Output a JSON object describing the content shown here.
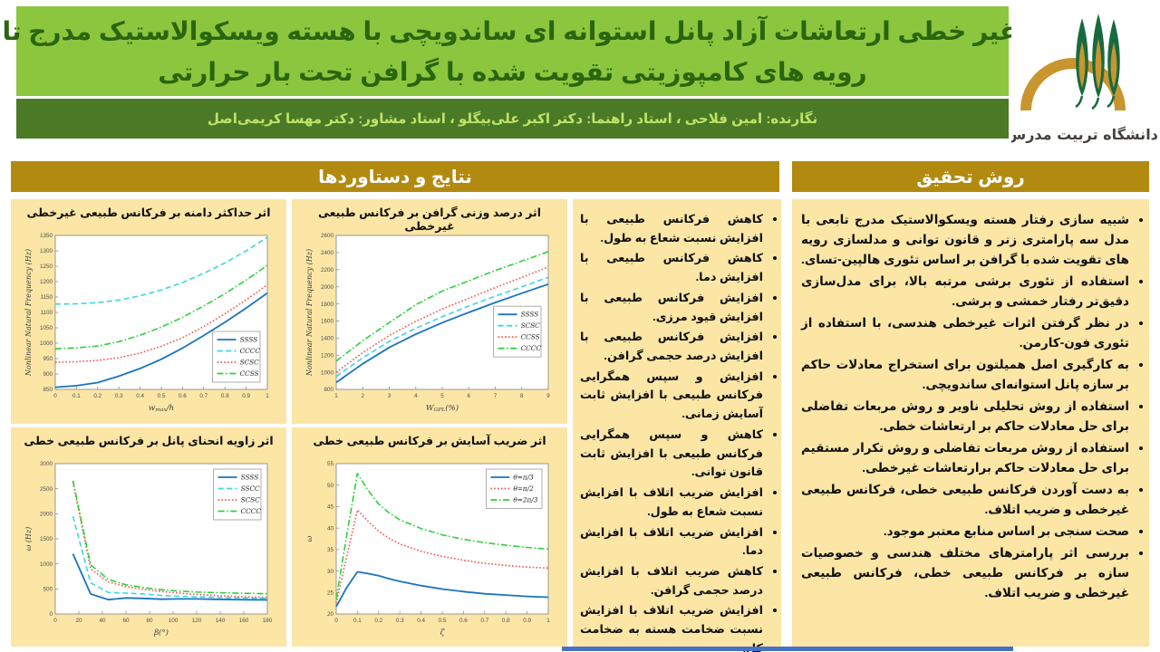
{
  "title": {
    "line1": "تحلیل غیر خطی ارتعاشات آزاد پانل استوانه ای ساندویچی با هسته ویسکوالاستیک مدرج تابعی و",
    "line2": "رویه های کامپوزیتی تقویت شده با گرافن تحت بار حرارتی"
  },
  "authors": "نگارنده: امین فلاحی   ،   استاد راهنما: دکتر اکبر علی‌بیگلو   ،   استاد مشاور: دکتر مهسا کریمی‌اصل",
  "logo": {
    "caption": "دانشگاه تربیت مدرس"
  },
  "sections": {
    "results": {
      "header": "نتایج و دستاوردها",
      "bullets": [
        "کاهش فرکانس طبیعی با افزایش نسبت شعاع به طول.",
        "کاهش فرکانس طبیعی با افزایش دما.",
        "افزایش فرکانس طبیعی با افزایش قیود مرزی.",
        "افزایش فرکانس طبیعی با افزایش درصد حجمی گرافن.",
        "افزایش و سپس همگرایی فرکانس طبیعی با افزایش ثابت آسایش زمانی.",
        "کاهش و سپس همگرایی فرکانس طبیعی با افزایش ثابت قانون توانی.",
        "افزایش ضریب اتلاف با افزایش نسبت شعاع به طول.",
        "افزایش ضریب اتلاف با افزایش دما.",
        "کاهش ضریب اتلاف با افزایش درصد حجمی گرافن.",
        "افزایش ضریب اتلاف با افزایش نسبت ضخامت هسته به ضخامت کل."
      ]
    },
    "method": {
      "header": "روش تحقیق",
      "bullets": [
        "شبیه سازی رفتار هسته ویسکوالاستیک مدرج تابعی با مدل سه پارامتری زنر و قانون توانی و مدلسازی رویه های تقویت شده با گرافن بر اساس تئوری هالپین-تسای.",
        "استفاده از تئوری برشی مرتبه بالا، برای مدل‌سازی دقیق‌تر رفتار خمشی و برشی.",
        "در نظر گرفتن اثرات غیرخطی هندسی، با استفاده از تئوری فون-کارمن.",
        "به کارگیری اصل همیلتون برای استخراج معادلات حاکم بر سازه پانل استوانه‌ای ساندویچی.",
        "استفاده از روش تحلیلی ناویر و روش مربعات تفاضلی برای حل معادلات حاکم بر ارتعاشات خطی.",
        "استفاده از روش مربعات تفاضلی و روش تکرار مستقیم برای حل معادلات حاکم برارتعاشات غیرخطی.",
        "به دست آوردن فرکانس طبیعی خطی، فرکانس طبیعی غیرخطی و ضریب اتلاف.",
        "صحت سنجی بر اساس منابع معتبر موجود.",
        "بررسی اثر پارامترهای مختلف هندسی و خصوصیات سازه بر فرکانس طبیعی خطی، فرکانس طبیعی غیرخطی و ضریب اتلاف."
      ]
    }
  },
  "colors": {
    "title_band_bg": "#8cc63e",
    "title_text": "#2a650f",
    "author_bar_bg": "#4b7a27",
    "author_text": "#bfe468",
    "section_header_bg": "#b28a10",
    "panel_bg": "#fbe6a6",
    "bottom_accent": "#4472c4",
    "logo_gold": "#c8952e",
    "logo_green": "#176a40",
    "line_blue": "#1a73c2",
    "line_cyan": "#3cd6e6",
    "line_red": "#f0564e",
    "line_green": "#2ed13a"
  },
  "chart_data": [
    {
      "type": "line",
      "title": "اثر حداکثر دامنه بر فرکانس طبیعی غیرخطی",
      "xlabel": "w_{max}/h",
      "ylabel": "Nonlinear Natural Frequency (Hz)",
      "xlim": [
        0,
        1
      ],
      "ylim": [
        850,
        1350
      ],
      "xticks": [
        0,
        0.1,
        0.2,
        0.3,
        0.4,
        0.5,
        0.6,
        0.7,
        0.8,
        0.9,
        1
      ],
      "yticks": [
        850,
        900,
        950,
        1000,
        1050,
        1100,
        1150,
        1200,
        1250,
        1300,
        1350
      ],
      "legend": "br",
      "x": [
        0,
        0.1,
        0.2,
        0.3,
        0.4,
        0.5,
        0.6,
        0.7,
        0.8,
        0.9,
        1
      ],
      "series": [
        {
          "name": "SSSS",
          "color": "#1a73c2",
          "dash": "solid",
          "y": [
            857,
            862,
            872,
            893,
            918,
            948,
            984,
            1025,
            1068,
            1114,
            1163
          ]
        },
        {
          "name": "CCCC",
          "color": "#3cd6e6",
          "dash": "dashed",
          "y": [
            1127,
            1128,
            1132,
            1140,
            1154,
            1173,
            1197,
            1227,
            1261,
            1300,
            1344
          ]
        },
        {
          "name": "SCSC",
          "color": "#f0564e",
          "dash": "dotted",
          "y": [
            938,
            940,
            944,
            953,
            968,
            990,
            1018,
            1054,
            1096,
            1141,
            1190
          ]
        },
        {
          "name": "CCSS",
          "color": "#2ed13a",
          "dash": "dashdot",
          "y": [
            982,
            985,
            991,
            1005,
            1026,
            1052,
            1084,
            1121,
            1161,
            1205,
            1253
          ]
        }
      ]
    },
    {
      "type": "line",
      "title": "اثر درصد وزنی گرافن بر فرکانس طبیعی غیرخطی",
      "xlabel": "W_{GPL}(%)",
      "ylabel": "Nonlinear Natural Frequency (Hz)",
      "xlim": [
        1,
        9
      ],
      "ylim": [
        800,
        2600
      ],
      "xticks": [
        1,
        2,
        3,
        4,
        5,
        6,
        7,
        8,
        9
      ],
      "yticks": [
        800,
        1000,
        1200,
        1400,
        1600,
        1800,
        2000,
        2200,
        2400,
        2600
      ],
      "legend": "mr",
      "x": [
        1,
        2,
        3,
        4,
        5,
        6,
        7,
        8,
        9
      ],
      "series": [
        {
          "name": "SSSS",
          "color": "#1a73c2",
          "dash": "solid",
          "y": [
            880,
            1100,
            1290,
            1445,
            1580,
            1700,
            1815,
            1925,
            2030
          ]
        },
        {
          "name": "SCSC",
          "color": "#3cd6e6",
          "dash": "dashed",
          "y": [
            950,
            1170,
            1360,
            1515,
            1650,
            1775,
            1890,
            2000,
            2110
          ]
        },
        {
          "name": "CCSS",
          "color": "#f0564e",
          "dash": "dotted",
          "y": [
            1000,
            1230,
            1430,
            1595,
            1740,
            1865,
            1990,
            2110,
            2230
          ]
        },
        {
          "name": "CCCC",
          "color": "#2ed13a",
          "dash": "dashdot",
          "y": [
            1130,
            1370,
            1580,
            1790,
            1950,
            2070,
            2190,
            2300,
            2410
          ]
        }
      ]
    },
    {
      "type": "line",
      "title": "اثر زاویه انحنای پانل بر فرکانس طبیعی خطی",
      "xlabel": "β(°)",
      "ylabel": "ω (Hz)",
      "xlim": [
        0,
        180
      ],
      "ylim": [
        0,
        3000
      ],
      "xticks": [
        0,
        20,
        40,
        60,
        80,
        100,
        120,
        140,
        160,
        180
      ],
      "yticks": [
        0,
        500,
        1000,
        1500,
        2000,
        2500,
        3000
      ],
      "legend": "tr",
      "x": [
        15,
        30,
        45,
        60,
        75,
        90,
        105,
        120,
        135,
        150,
        165,
        180
      ],
      "series": [
        {
          "name": "SSSS",
          "color": "#1a73c2",
          "dash": "solid",
          "y": [
            1200,
            400,
            285,
            320,
            310,
            295,
            300,
            300,
            292,
            288,
            284,
            280
          ]
        },
        {
          "name": "SSCC",
          "color": "#3cd6e6",
          "dash": "dashed",
          "y": [
            1950,
            620,
            430,
            415,
            400,
            370,
            355,
            342,
            332,
            324,
            317,
            310
          ]
        },
        {
          "name": "SCSC",
          "color": "#f0564e",
          "dash": "dotted",
          "y": [
            2630,
            900,
            640,
            545,
            492,
            448,
            415,
            388,
            368,
            352,
            340,
            330
          ]
        },
        {
          "name": "CCCC",
          "color": "#2ed13a",
          "dash": "dashdot",
          "y": [
            2660,
            980,
            690,
            582,
            528,
            485,
            458,
            438,
            426,
            417,
            411,
            405
          ]
        }
      ]
    },
    {
      "type": "line",
      "title": "اثر ضریب آسایش بر فرکانس طبیعی خطی",
      "xlabel": "ζ",
      "ylabel": "ω",
      "xlim": [
        0,
        1
      ],
      "ylim": [
        20,
        55
      ],
      "xticks": [
        0,
        0.1,
        0.2,
        0.3,
        0.4,
        0.5,
        0.6,
        0.7,
        0.8,
        0.9,
        1
      ],
      "yticks": [
        20,
        25,
        30,
        35,
        40,
        45,
        50,
        55
      ],
      "legend": "tr",
      "x": [
        0,
        0.05,
        0.1,
        0.15,
        0.2,
        0.25,
        0.3,
        0.4,
        0.5,
        0.6,
        0.7,
        0.8,
        0.9,
        1
      ],
      "series": [
        {
          "name": "θ=π/3",
          "color": "#1a73c2",
          "dash": "solid",
          "y": [
            21.7,
            26.2,
            29.8,
            29.4,
            28.9,
            28.2,
            27.6,
            26.6,
            25.8,
            25.2,
            24.7,
            24.4,
            24.1,
            23.9
          ]
        },
        {
          "name": "θ=π/2",
          "color": "#f0564e",
          "dash": "dotted",
          "y": [
            22.5,
            33.5,
            44.2,
            41.6,
            39.3,
            37.6,
            36.3,
            34.6,
            33.4,
            32.5,
            31.8,
            31.3,
            30.9,
            30.7
          ]
        },
        {
          "name": "θ=2π/3",
          "color": "#2ed13a",
          "dash": "dashdot",
          "y": [
            23.5,
            38.5,
            52.7,
            48.8,
            45.6,
            43.5,
            41.9,
            39.9,
            38.4,
            37.4,
            36.6,
            36.0,
            35.5,
            35.1
          ]
        }
      ]
    }
  ]
}
